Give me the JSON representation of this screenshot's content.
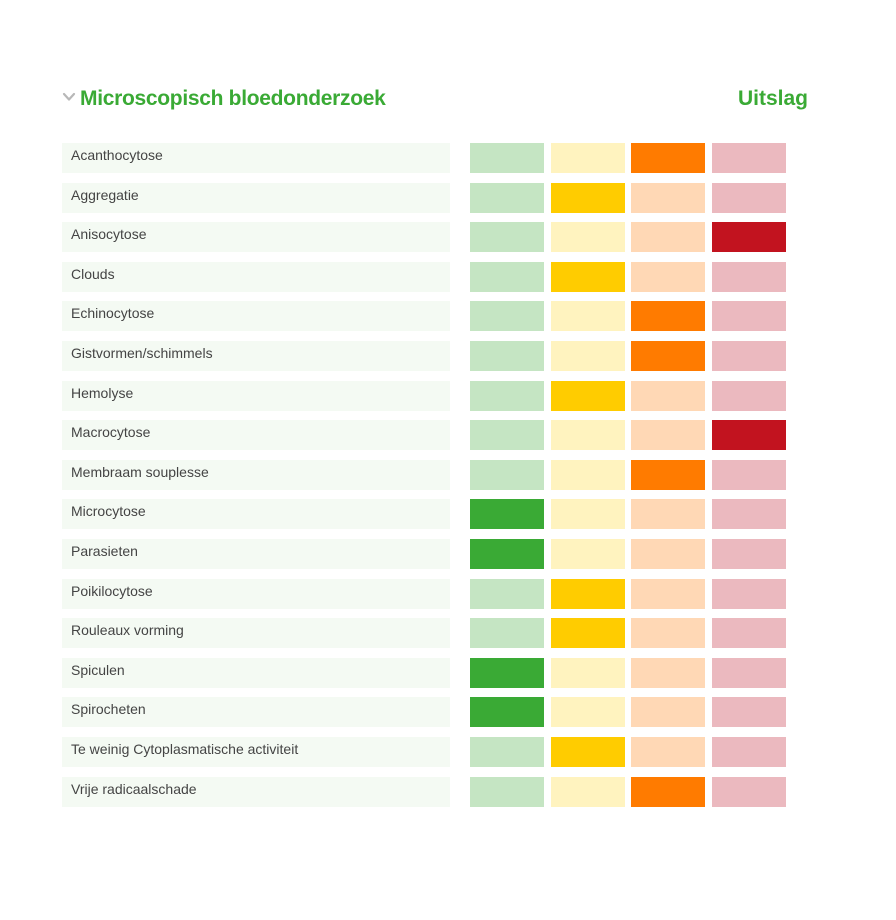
{
  "header": {
    "section_title": "Microscopisch bloedonderzoek",
    "result_title": "Uitslag",
    "chevron_icon": "chevron-down-icon"
  },
  "scale": {
    "inactive_colors": [
      "#c5e5c3",
      "#fff3bf",
      "#ffd8b5",
      "#ebb9bf"
    ],
    "active_colors": [
      "#3aaa35",
      "#ffcc00",
      "#ff7b00",
      "#c2131f"
    ]
  },
  "rows": [
    {
      "label": "Acanthocytose",
      "level": 2
    },
    {
      "label": "Aggregatie",
      "level": 1
    },
    {
      "label": "Anisocytose",
      "level": 3
    },
    {
      "label": "Clouds",
      "level": 1
    },
    {
      "label": "Echinocytose",
      "level": 2
    },
    {
      "label": "Gistvormen/schimmels",
      "level": 2
    },
    {
      "label": "Hemolyse",
      "level": 1
    },
    {
      "label": "Macrocytose",
      "level": 3
    },
    {
      "label": "Membraam souplesse",
      "level": 2
    },
    {
      "label": "Microcytose",
      "level": 0
    },
    {
      "label": "Parasieten",
      "level": 0
    },
    {
      "label": "Poikilocytose",
      "level": 1
    },
    {
      "label": "Rouleaux vorming",
      "level": 1
    },
    {
      "label": "Spiculen",
      "level": 0
    },
    {
      "label": "Spirocheten",
      "level": 0
    },
    {
      "label": "Te weinig Cytoplasmatische activiteit",
      "level": 1
    },
    {
      "label": "Vrije radicaalschade",
      "level": 2
    }
  ]
}
